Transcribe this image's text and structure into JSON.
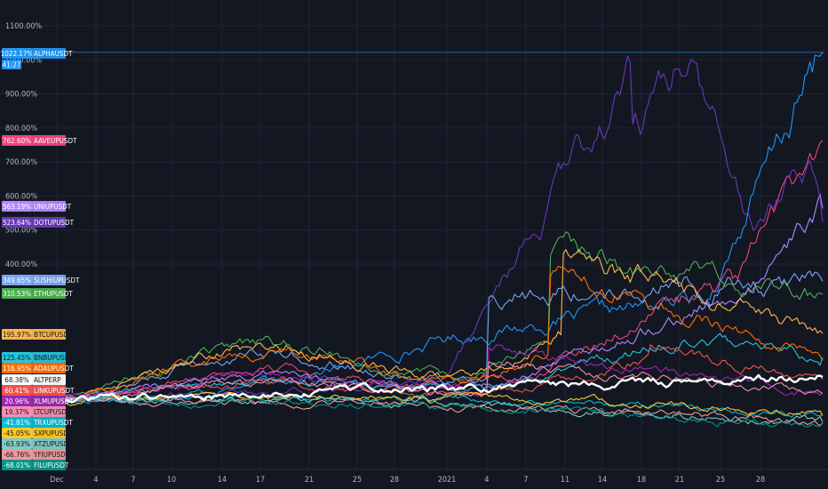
{
  "chart_data": {
    "type": "line",
    "ylabel_unit": "%",
    "y_ticks": [
      "1100.00%",
      "1000.00%",
      "900.00%",
      "800.00%",
      "700.00%",
      "600.00%",
      "500.00%",
      "400.00%"
    ],
    "x_ticks": [
      "Dec",
      "4",
      "7",
      "10",
      "14",
      "17",
      "21",
      "25",
      "28",
      "2021",
      "4",
      "7",
      "11",
      "14",
      "18",
      "21",
      "25",
      "28"
    ],
    "ylim": [
      -80,
      1120
    ],
    "grid": true,
    "countdown": "41:27",
    "background": "#131722",
    "series": [
      {
        "name": "ALPHAUSDT",
        "last": "1022.17%",
        "end": 1022.17,
        "color": "#2196f3",
        "shape": "late_spike",
        "peak_day": 60,
        "peak": 300
      },
      {
        "name": "AAVEUPUSDT",
        "last": "762.60%",
        "end": 762.6,
        "color": "#f0437c",
        "shape": "wave",
        "peak_day": 55,
        "peak": 340
      },
      {
        "name": "UNIUPUSDT",
        "last": "563.19%",
        "end": 563.19,
        "color": "#b388ff",
        "shape": "wave",
        "peak_day": 58,
        "peak": 300
      },
      {
        "name": "DOTUPUSDT",
        "last": "523.64%",
        "end": 523.64,
        "color": "#673ab7",
        "shape": "dot",
        "peak_day": 48,
        "peak": 960
      },
      {
        "name": "SUSHIUPUSDT",
        "last": "349.65%",
        "end": 349.65,
        "color": "#7aa6f0",
        "shape": "wave",
        "peak_day": 35,
        "peak": 320
      },
      {
        "name": "ETHUPUSDT",
        "last": "310.53%",
        "end": 310.53,
        "color": "#4caf50",
        "shape": "wave",
        "peak_day": 40,
        "peak": 440
      },
      {
        "name": "BTCUPUSDT",
        "last": "195.97%",
        "end": 195.97,
        "color": "#ffb74d",
        "shape": "wave",
        "peak_day": 41,
        "peak": 430
      },
      {
        "name": "BNBUPUSDT",
        "last": "125.45%",
        "end": 125.45,
        "color": "#26c6da",
        "shape": "wave",
        "peak_day": 52,
        "peak": 200
      },
      {
        "name": "ADAUPUSDT",
        "last": "116.95%",
        "end": 116.95,
        "color": "#ff6d00",
        "shape": "wave",
        "peak_day": 40,
        "peak": 390
      },
      {
        "name": "ALTPERP",
        "last": "68.38%",
        "end": 68.38,
        "color": "#ffffff",
        "shape": "flat_rise",
        "peak_day": 58,
        "peak": 70
      },
      {
        "name": "LINKUPUSDT",
        "last": "60.41%",
        "end": 60.41,
        "color": "#ef5350",
        "shape": "wave",
        "peak_day": 48,
        "peak": 150
      },
      {
        "name": "XLMUPUSDT",
        "last": "20.96%",
        "end": 20.96,
        "color": "#9c27b0",
        "shape": "wave",
        "peak_day": 35,
        "peak": 160
      },
      {
        "name": "LTCUPUSDT",
        "last": "19.37%",
        "end": 19.37,
        "color": "#f48fb1",
        "shape": "wave",
        "peak_day": 35,
        "peak": 120
      },
      {
        "name": "TRXUPUSDT",
        "last": "-41.81%",
        "end": -41.81,
        "color": "#00bcd4",
        "shape": "decline",
        "peak_day": 30,
        "peak": 20
      },
      {
        "name": "SXPUPUSDT",
        "last": "-45.05%",
        "end": -45.05,
        "color": "#ffca28",
        "shape": "decline",
        "peak_day": 32,
        "peak": 30
      },
      {
        "name": "XTZUPUSDT",
        "last": "-63.93%",
        "end": -63.93,
        "color": "#80cbc4",
        "shape": "decline",
        "peak_day": 20,
        "peak": 10
      },
      {
        "name": "YFIUPUSDT",
        "last": "-66.76%",
        "end": -66.76,
        "color": "#ef9a9a",
        "shape": "decline",
        "peak_day": 20,
        "peak": 5
      },
      {
        "name": "FILUPUSDT",
        "last": "-68.01%",
        "end": -68.01,
        "color": "#009688",
        "shape": "decline",
        "peak_day": 15,
        "peak": 0
      }
    ]
  }
}
